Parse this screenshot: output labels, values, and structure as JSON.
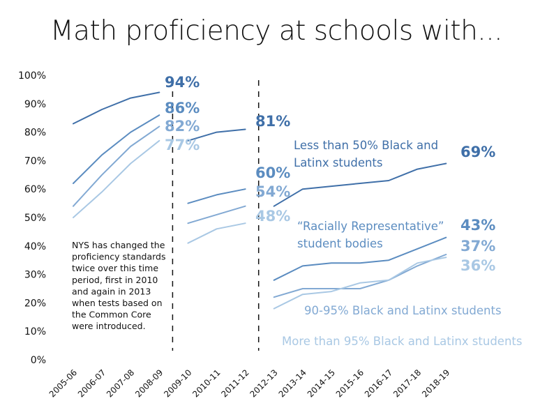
{
  "chart_data": {
    "type": "line",
    "title": "Math proficiency at schools with...",
    "categories": [
      "2005-06",
      "2006-07",
      "2007-08",
      "2008-09",
      "2009-10",
      "2010-11",
      "2011-12",
      "2012-13",
      "2013-14",
      "2014-15",
      "2015-16",
      "2016-17",
      "2017-18",
      "2018-19"
    ],
    "yticks": [
      "0%",
      "10%",
      "20%",
      "30%",
      "40%",
      "50%",
      "60%",
      "70%",
      "80%",
      "90%",
      "100%"
    ],
    "ylim": [
      0,
      100
    ],
    "grid": false,
    "standard_changes": [
      "2009-10",
      "2012-13"
    ],
    "note": "NYS has changed the proficiency standards twice over this time period, first in 2010 and again in 2013 when tests based on the Common Core were introduced.",
    "series": [
      {
        "name": "Less than 50% Black and Latinx students",
        "color": "#3f6fa8",
        "values": [
          83,
          88,
          92,
          94,
          77,
          80,
          81,
          54,
          60,
          61,
          62,
          63,
          67,
          69
        ],
        "labels": [
          "94%",
          "81%",
          "69%"
        ]
      },
      {
        "name": "“Racially Representative” student bodies",
        "color": "#5b8cc0",
        "values": [
          62,
          72,
          80,
          86,
          55,
          58,
          60,
          28,
          33,
          34,
          34,
          35,
          39,
          43
        ],
        "labels": [
          "86%",
          "60%",
          "43%"
        ]
      },
      {
        "name": "90-95% Black and Latinx students",
        "color": "#82a9d3",
        "values": [
          54,
          65,
          75,
          82,
          48,
          51,
          54,
          22,
          25,
          25,
          25,
          28,
          33,
          37
        ],
        "labels": [
          "82%",
          "54%",
          "37%"
        ]
      },
      {
        "name": "More than 95% Black and Latinx students",
        "color": "#a9c8e4",
        "values": [
          50,
          59,
          69,
          77,
          41,
          46,
          48,
          18,
          23,
          24,
          27,
          28,
          34,
          36
        ],
        "labels": [
          "77%",
          "48%",
          "36%"
        ]
      }
    ]
  }
}
